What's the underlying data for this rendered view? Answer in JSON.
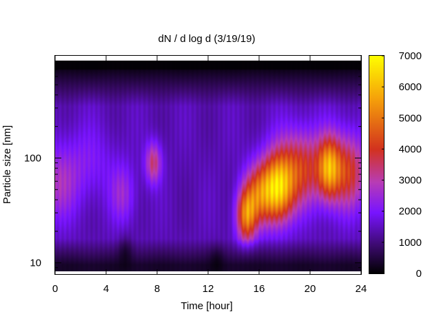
{
  "chart_data": {
    "type": "heatmap",
    "title": "dN / d log d (3/19/19)",
    "xlabel": "Time [hour]",
    "ylabel": "Particle size [nm]",
    "xlim": [
      0,
      24
    ],
    "ylim_nm": [
      8.3,
      850
    ],
    "y_scale": "log",
    "x_ticks": [
      0,
      4,
      8,
      12,
      16,
      20,
      24
    ],
    "x_tick_labels": [
      "0",
      "4",
      "8",
      "12",
      "16",
      "20",
      "24"
    ],
    "y_ticks": [
      10,
      100
    ],
    "y_tick_labels": [
      "10",
      "100"
    ],
    "colorbar": {
      "range": [
        0,
        7000
      ],
      "ticks": [
        0,
        1000,
        2000,
        3000,
        4000,
        5000,
        6000,
        7000
      ],
      "tick_labels": [
        "0",
        "1000",
        "2000",
        "3000",
        "4000",
        "5000",
        "6000",
        "7000"
      ],
      "palette": [
        "#000000",
        "#3c0a6e",
        "#7814ff",
        "#b83cb4",
        "#d2321e",
        "#f5a00a",
        "#ffff00"
      ],
      "palette_stops": [
        0.0,
        0.13,
        0.28,
        0.42,
        0.57,
        0.8,
        1.0
      ]
    },
    "background_level": 1500,
    "features": [
      {
        "name": "early-mode",
        "x_hour": 0.0,
        "size_nm": 55,
        "x_sigma_h": 1.2,
        "size_sigma_decades": 0.25,
        "value": 1300
      },
      {
        "name": "morning-blob",
        "x_hour": 2.5,
        "size_nm": 90,
        "x_sigma_h": 1.5,
        "size_sigma_decades": 0.25,
        "value": 700
      },
      {
        "name": "hour5-mode",
        "x_hour": 5.3,
        "size_nm": 45,
        "x_sigma_h": 0.7,
        "size_sigma_decades": 0.2,
        "value": 1100
      },
      {
        "name": "hour8-mode",
        "x_hour": 7.7,
        "size_nm": 90,
        "x_sigma_h": 0.45,
        "size_sigma_decades": 0.14,
        "value": 2100
      },
      {
        "name": "growth-15h",
        "x_hour": 15.0,
        "size_nm": 28,
        "x_sigma_h": 0.55,
        "size_sigma_decades": 0.18,
        "value": 3600
      },
      {
        "name": "growth-16h",
        "x_hour": 16.0,
        "size_nm": 45,
        "x_sigma_h": 0.8,
        "size_sigma_decades": 0.2,
        "value": 2800
      },
      {
        "name": "peak-17h",
        "x_hour": 17.5,
        "size_nm": 50,
        "x_sigma_h": 0.85,
        "size_sigma_decades": 0.22,
        "value": 4400
      },
      {
        "name": "band-19h",
        "x_hour": 19.3,
        "size_nm": 80,
        "x_sigma_h": 1.5,
        "size_sigma_decades": 0.25,
        "value": 2800
      },
      {
        "name": "peak-21h",
        "x_hour": 21.5,
        "size_nm": 80,
        "x_sigma_h": 0.6,
        "size_sigma_decades": 0.2,
        "value": 3300
      },
      {
        "name": "late-mode",
        "x_hour": 23.0,
        "size_nm": 75,
        "x_sigma_h": 1.0,
        "size_sigma_decades": 0.25,
        "value": 2700
      }
    ],
    "dark_regions": [
      {
        "name": "top-dark-band",
        "size_nm_above": 700
      },
      {
        "name": "bottom-dark-band",
        "size_nm_below": 9.5
      },
      {
        "name": "dip-5h",
        "x_hour": 5.5,
        "size_nm": 12,
        "x_sigma_h": 0.4,
        "size_sigma_decades": 0.12,
        "depth": 900
      },
      {
        "name": "dip-12h",
        "x_hour": 12.7,
        "size_nm": 10,
        "x_sigma_h": 0.4,
        "size_sigma_decades": 0.1,
        "depth": 900
      }
    ]
  }
}
